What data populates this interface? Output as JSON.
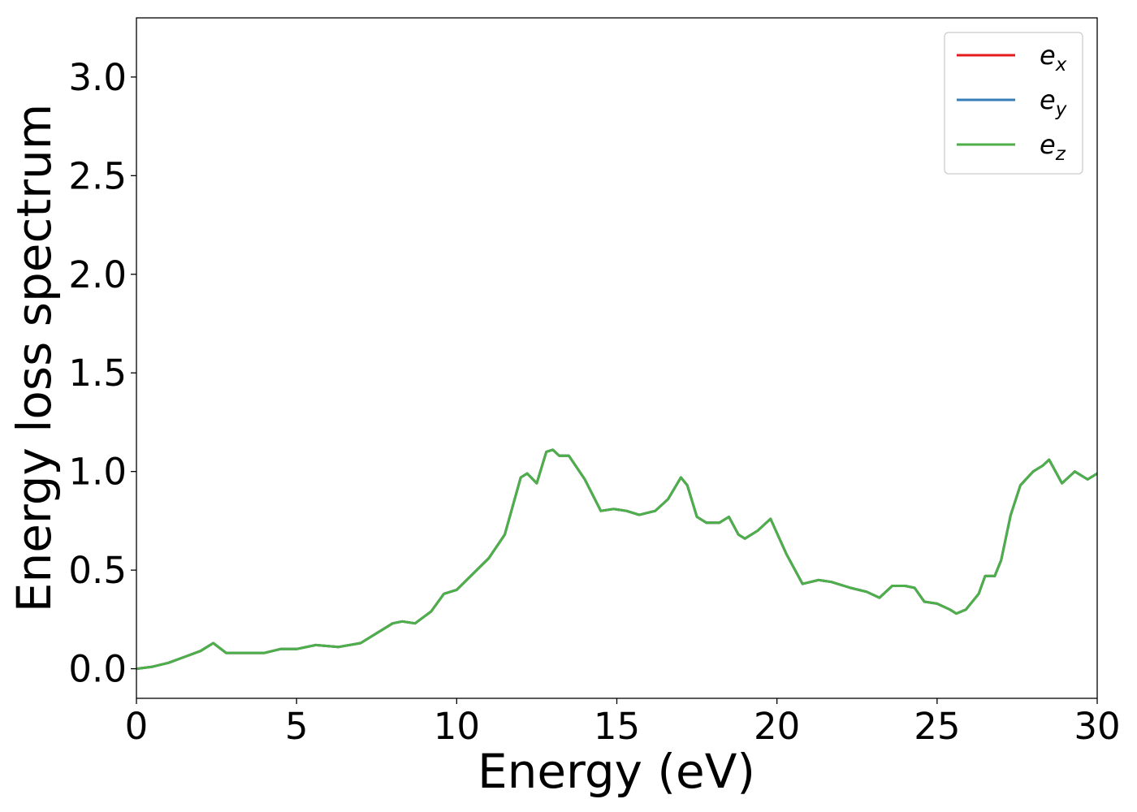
{
  "chart_data": {
    "type": "line",
    "title": "",
    "xlabel": "Energy (eV)",
    "ylabel": "Energy loss spectrum",
    "xlim": [
      0,
      30
    ],
    "ylim": [
      -0.15,
      3.3
    ],
    "xticks": [
      0,
      5,
      10,
      15,
      20,
      25,
      30
    ],
    "xtick_labels": [
      "0",
      "5",
      "10",
      "15",
      "20",
      "25",
      "30"
    ],
    "yticks": [
      0.0,
      0.5,
      1.0,
      1.5,
      2.0,
      2.5,
      3.0
    ],
    "ytick_labels": [
      "0.0",
      "0.5",
      "1.0",
      "1.5",
      "2.0",
      "2.5",
      "3.0"
    ],
    "grid": false,
    "legend": {
      "position": "top-right",
      "entries": [
        {
          "label": "e",
          "sub": "x",
          "color": "#e41a1c"
        },
        {
          "label": "e",
          "sub": "y",
          "color": "#377eb8"
        },
        {
          "label": "e",
          "sub": "z",
          "color": "#4daf4a"
        }
      ]
    },
    "x": [
      0,
      0.5,
      1.0,
      1.5,
      2.0,
      2.4,
      2.8,
      3.5,
      4.0,
      4.5,
      5.0,
      5.6,
      6.3,
      7.0,
      7.5,
      8.0,
      8.3,
      8.7,
      9.2,
      9.6,
      10.0,
      10.5,
      11.0,
      11.5,
      12.0,
      12.2,
      12.5,
      12.8,
      13.0,
      13.2,
      13.5,
      14.0,
      14.5,
      14.9,
      15.3,
      15.7,
      16.2,
      16.6,
      17.0,
      17.2,
      17.5,
      17.8,
      18.2,
      18.5,
      18.8,
      19.0,
      19.4,
      19.6,
      19.8,
      20.3,
      20.8,
      21.3,
      21.7,
      22.3,
      22.8,
      23.2,
      23.6,
      24.0,
      24.3,
      24.6,
      25.0,
      25.4,
      25.6,
      25.9,
      26.3,
      26.5,
      26.8,
      27.0,
      27.3,
      27.6,
      28.0,
      28.3,
      28.5,
      28.9,
      29.3,
      29.7,
      30.0
    ],
    "series": [
      {
        "name": "e_x",
        "color": "#e41a1c",
        "values": [
          0.0,
          0.01,
          0.03,
          0.06,
          0.09,
          0.13,
          0.08,
          0.08,
          0.08,
          0.1,
          0.1,
          0.12,
          0.11,
          0.13,
          0.18,
          0.23,
          0.24,
          0.23,
          0.29,
          0.38,
          0.4,
          0.48,
          0.56,
          0.68,
          0.97,
          0.99,
          0.94,
          1.1,
          1.11,
          1.08,
          1.08,
          0.96,
          0.8,
          0.81,
          0.8,
          0.78,
          0.8,
          0.86,
          0.97,
          0.93,
          0.77,
          0.74,
          0.74,
          0.77,
          0.68,
          0.66,
          0.7,
          0.73,
          0.76,
          0.58,
          0.43,
          0.45,
          0.44,
          0.41,
          0.39,
          0.36,
          0.42,
          0.42,
          0.41,
          0.34,
          0.33,
          0.3,
          0.28,
          0.3,
          0.38,
          0.47,
          0.47,
          0.55,
          0.78,
          0.93,
          1.0,
          1.03,
          1.06,
          0.94,
          1.0,
          0.96,
          0.99
        ]
      },
      {
        "name": "e_y",
        "color": "#377eb8",
        "values": [
          0.0,
          0.01,
          0.03,
          0.06,
          0.09,
          0.13,
          0.08,
          0.08,
          0.08,
          0.1,
          0.1,
          0.12,
          0.11,
          0.13,
          0.18,
          0.23,
          0.24,
          0.23,
          0.29,
          0.38,
          0.4,
          0.48,
          0.56,
          0.68,
          0.97,
          0.99,
          0.94,
          1.1,
          1.11,
          1.08,
          1.08,
          0.96,
          0.8,
          0.81,
          0.8,
          0.78,
          0.8,
          0.86,
          0.97,
          0.93,
          0.77,
          0.74,
          0.74,
          0.77,
          0.68,
          0.66,
          0.7,
          0.73,
          0.76,
          0.58,
          0.43,
          0.45,
          0.44,
          0.41,
          0.39,
          0.36,
          0.42,
          0.42,
          0.41,
          0.34,
          0.33,
          0.3,
          0.28,
          0.3,
          0.38,
          0.47,
          0.47,
          0.55,
          0.78,
          0.93,
          1.0,
          1.03,
          1.06,
          0.94,
          1.0,
          0.96,
          0.99
        ]
      },
      {
        "name": "e_z",
        "color": "#4daf4a",
        "values": [
          0.0,
          0.01,
          0.03,
          0.06,
          0.09,
          0.13,
          0.08,
          0.08,
          0.08,
          0.1,
          0.1,
          0.12,
          0.11,
          0.13,
          0.18,
          0.23,
          0.24,
          0.23,
          0.29,
          0.38,
          0.4,
          0.48,
          0.56,
          0.68,
          0.97,
          0.99,
          0.94,
          1.1,
          1.11,
          1.08,
          1.08,
          0.96,
          0.8,
          0.81,
          0.8,
          0.78,
          0.8,
          0.86,
          0.97,
          0.93,
          0.77,
          0.74,
          0.74,
          0.77,
          0.68,
          0.66,
          0.7,
          0.73,
          0.76,
          0.58,
          0.43,
          0.45,
          0.44,
          0.41,
          0.39,
          0.36,
          0.42,
          0.42,
          0.41,
          0.34,
          0.33,
          0.3,
          0.28,
          0.3,
          0.38,
          0.47,
          0.47,
          0.55,
          0.78,
          0.93,
          1.0,
          1.03,
          1.06,
          0.94,
          1.0,
          0.96,
          0.99
        ]
      }
    ]
  }
}
